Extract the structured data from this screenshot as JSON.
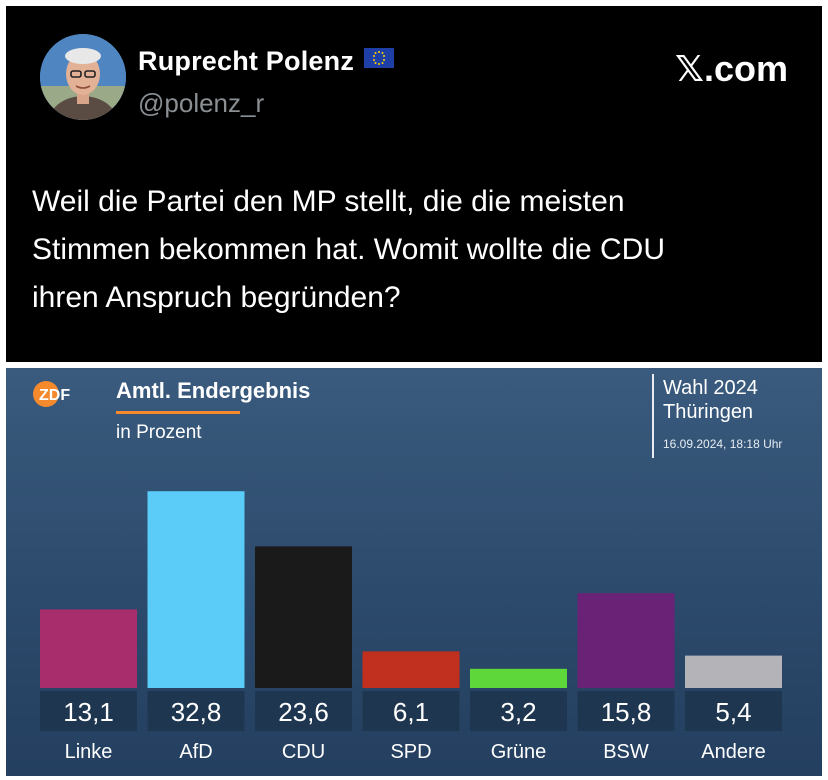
{
  "tweet": {
    "author_name": "Ruprecht Polenz",
    "author_handle": "@polenz_r",
    "brand": "𝕏.com",
    "text_lines": [
      "Weil die Partei den MP stellt, die die meisten",
      "Stimmen bekommen hat. Womit wollte die CDU",
      "ihren Anspruch begründen?"
    ],
    "icons": {
      "avatar": "profile-photo",
      "flag": "eu-flag-icon"
    }
  },
  "chart_panel": {
    "logo": "ZDF",
    "title": "Amtl. Endergebnis",
    "subtitle": "in Prozent",
    "election_line1": "Wahl 2024",
    "election_line2": "Thüringen",
    "timestamp": "16.09.2024, 18:18 Uhr",
    "colors": {
      "accent": "#f58a2c",
      "background": "#2f4d70",
      "label_box": "#1f3650"
    }
  },
  "chart_data": {
    "type": "bar",
    "title": "Amtl. Endergebnis",
    "subtitle": "in Prozent",
    "categories": [
      "Linke",
      "AfD",
      "CDU",
      "SPD",
      "Grüne",
      "BSW",
      "Andere"
    ],
    "values": [
      13.1,
      32.8,
      23.6,
      6.1,
      3.2,
      15.8,
      5.4
    ],
    "value_labels": [
      "13,1",
      "32,8",
      "23,6",
      "6,1",
      "3,2",
      "15,8",
      "5,4"
    ],
    "colors": [
      "#a72d6c",
      "#5bcbf7",
      "#1a1a1a",
      "#c1301f",
      "#5ed73a",
      "#6a2277",
      "#b4b4b8"
    ],
    "ylim": [
      0,
      35
    ],
    "grid": false,
    "legend": "none"
  }
}
